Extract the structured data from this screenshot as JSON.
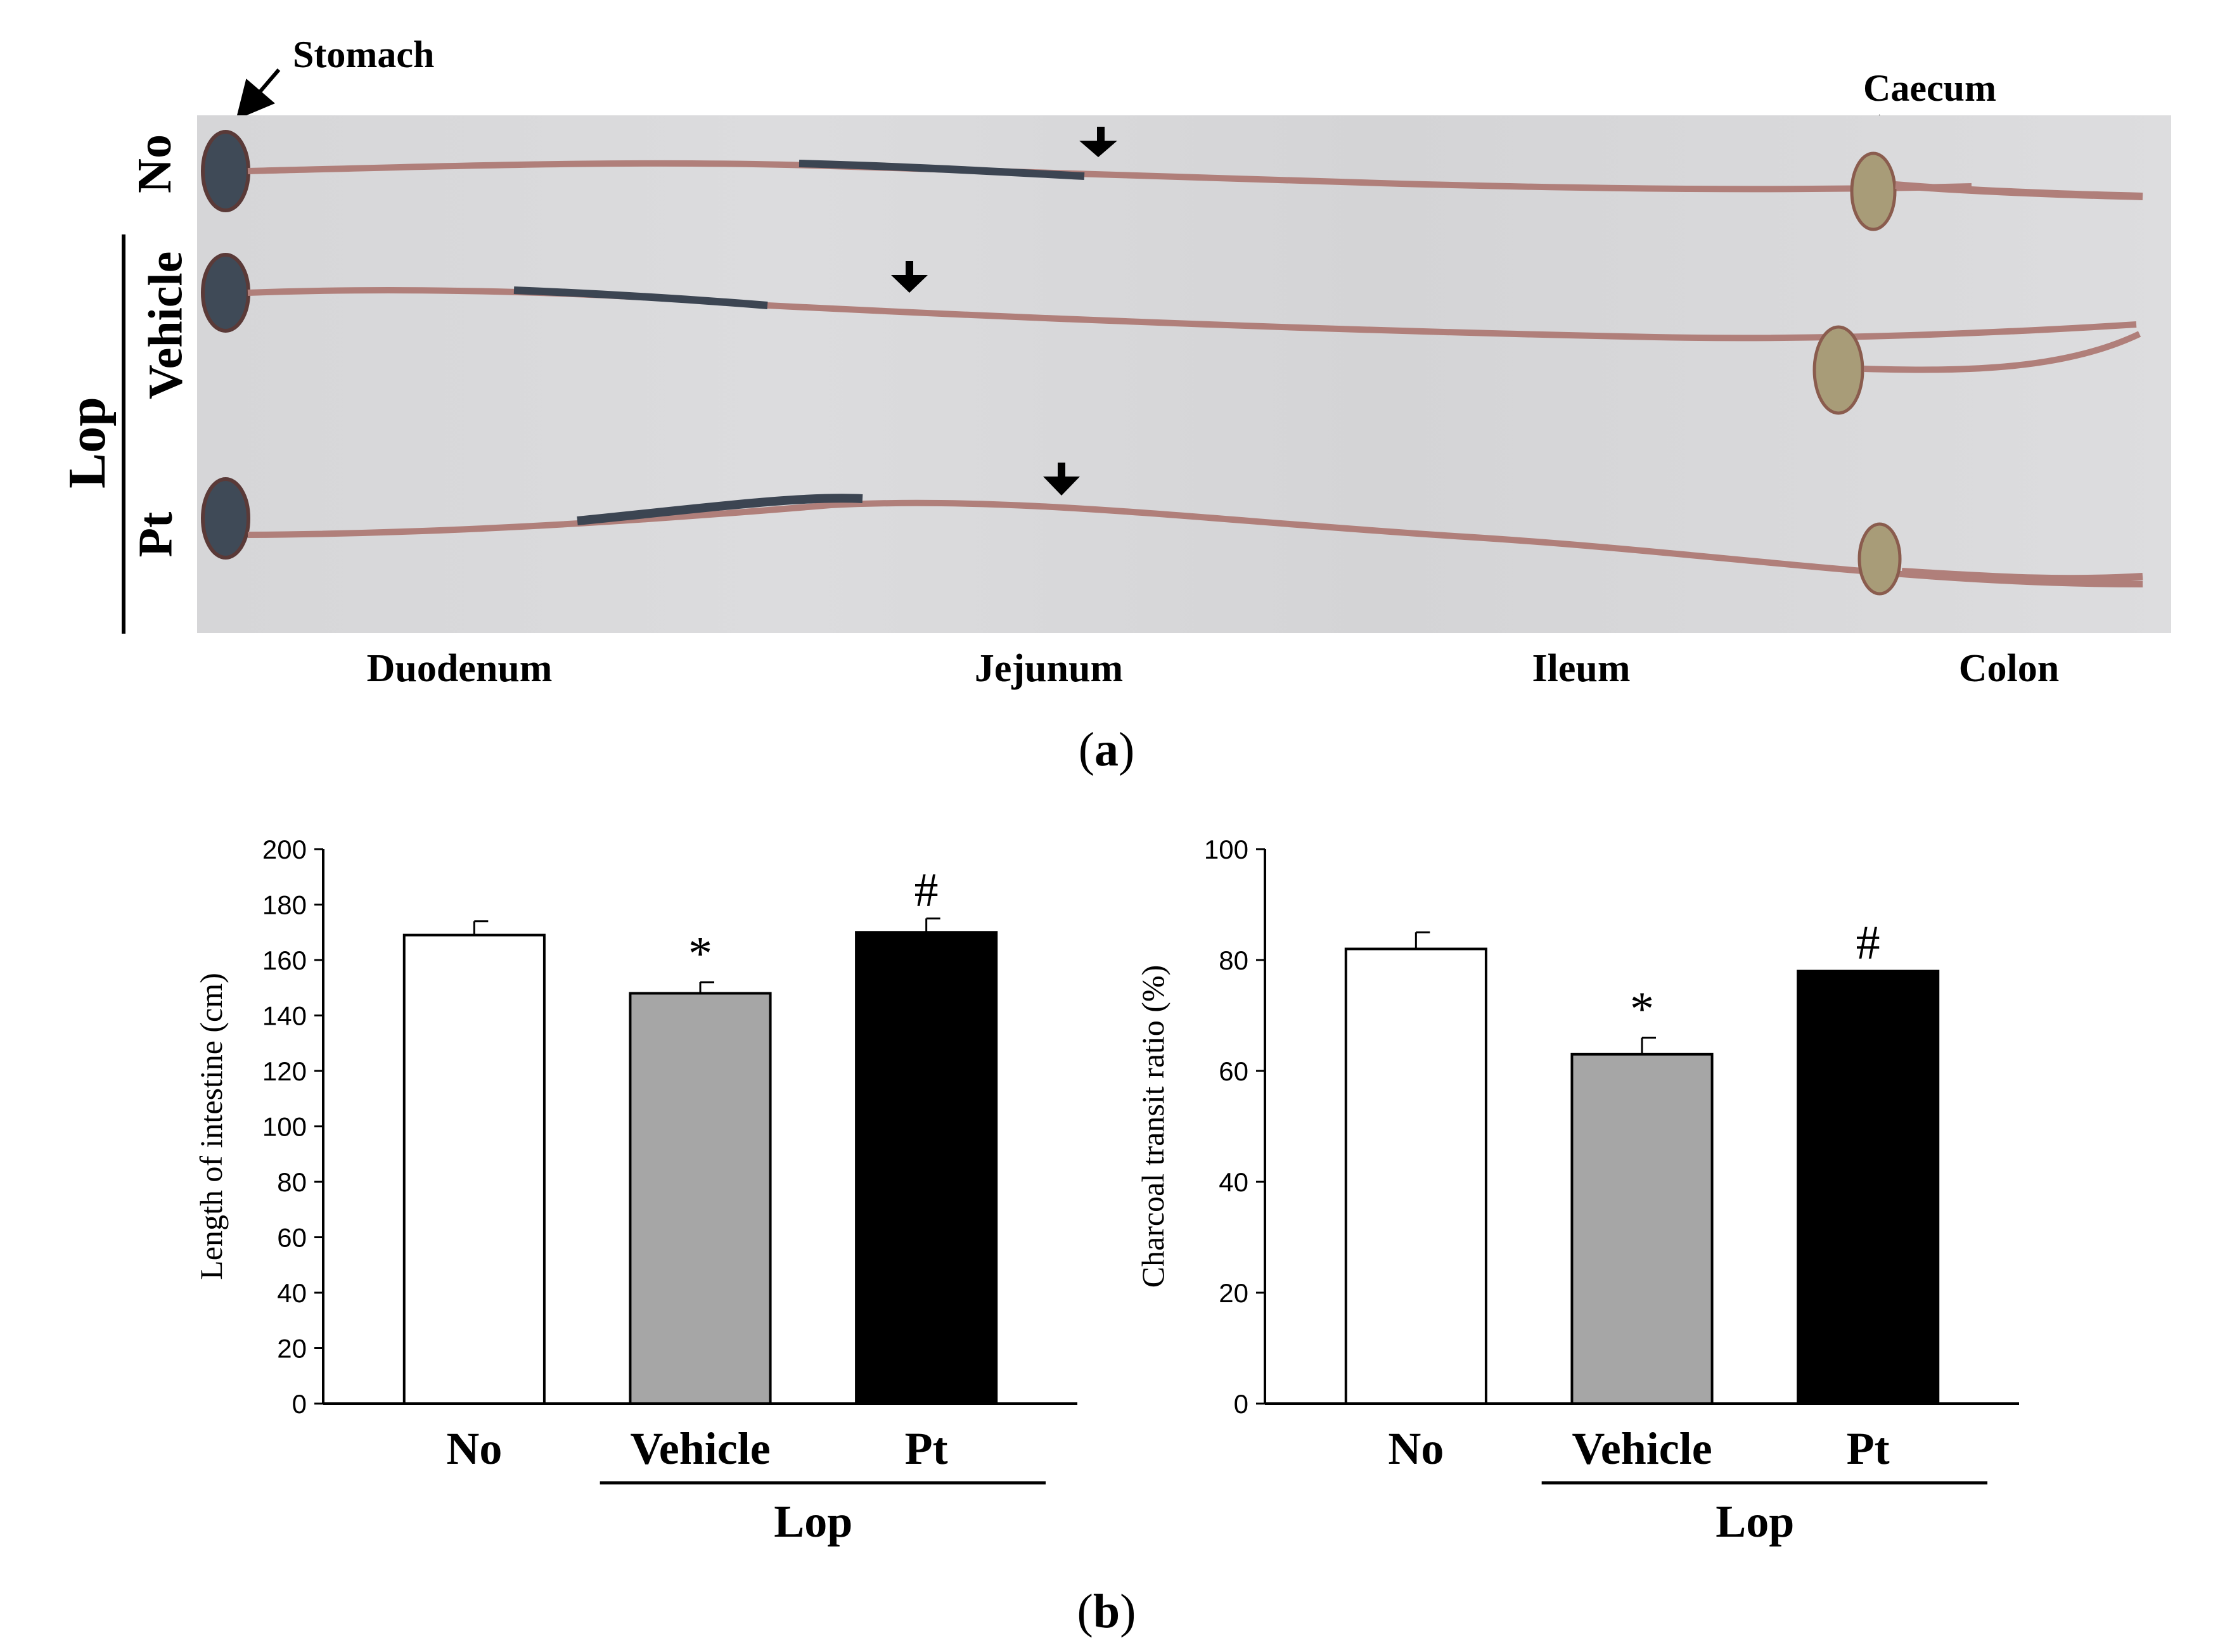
{
  "panel_a": {
    "stomach_label": "Stomach",
    "caecum_label": "Caecum",
    "row_labels": [
      "No",
      "Vehicle",
      "Pt"
    ],
    "group_label": "Lop",
    "regions": [
      "Duodenum",
      "Jejunum",
      "Ileum",
      "Colon"
    ],
    "caption_letter": "a"
  },
  "panel_b": {
    "caption_letter": "b"
  },
  "chart_data": [
    {
      "type": "bar",
      "categories": [
        "No",
        "Vehicle",
        "Pt"
      ],
      "group_label": "Lop",
      "values": [
        169,
        148,
        170
      ],
      "errors": [
        5,
        4,
        5
      ],
      "fills": [
        "#ffffff",
        "#a6a6a6",
        "#000000"
      ],
      "significance": [
        "",
        "*",
        "#"
      ],
      "ylabel": "Length of intestine (cm)",
      "ylim": [
        0,
        200
      ],
      "yticks": [
        0,
        20,
        40,
        60,
        80,
        100,
        120,
        140,
        160,
        180,
        200
      ]
    },
    {
      "type": "bar",
      "categories": [
        "No",
        "Vehicle",
        "Pt"
      ],
      "group_label": "Lop",
      "values": [
        82,
        63,
        78
      ],
      "errors": [
        3,
        3,
        0
      ],
      "fills": [
        "#ffffff",
        "#a6a6a6",
        "#000000"
      ],
      "significance": [
        "",
        "*",
        "#"
      ],
      "ylabel": "Charcoal transit ratio (%)",
      "ylim": [
        0,
        100
      ],
      "yticks": [
        0,
        20,
        40,
        60,
        80,
        100
      ]
    }
  ]
}
